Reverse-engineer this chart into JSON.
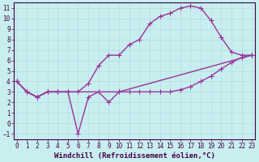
{
  "xlabel": "Windchill (Refroidissement éolien,°C)",
  "bg_color": "#c8eef0",
  "line_color": "#993399",
  "grid_color": "#b0dde0",
  "axis_color": "#440044",
  "tick_color": "#440044",
  "xlim": [
    -0.3,
    23.3
  ],
  "ylim": [
    -1.5,
    11.5
  ],
  "xticks": [
    0,
    1,
    2,
    3,
    4,
    5,
    6,
    7,
    8,
    9,
    10,
    11,
    12,
    13,
    14,
    15,
    16,
    17,
    18,
    19,
    20,
    21,
    22,
    23
  ],
  "yticks": [
    -1,
    0,
    1,
    2,
    3,
    4,
    5,
    6,
    7,
    8,
    9,
    10,
    11
  ],
  "line1_x": [
    0,
    1,
    2,
    3,
    4,
    5,
    6,
    7,
    8,
    9,
    10,
    11,
    12,
    13,
    14,
    15,
    16,
    17,
    18,
    19,
    20,
    21,
    22,
    23
  ],
  "line1_y": [
    4.0,
    3.0,
    2.5,
    3.0,
    3.0,
    3.0,
    -1.0,
    2.5,
    3.0,
    2.0,
    3.0,
    3.0,
    3.0,
    3.0,
    3.0,
    3.0,
    3.2,
    3.5,
    4.0,
    4.5,
    5.2,
    5.8,
    6.3,
    6.5
  ],
  "line2_x": [
    0,
    1,
    2,
    3,
    4,
    5,
    6,
    7,
    8,
    9,
    10,
    11,
    12,
    13,
    14,
    15,
    16,
    17,
    18,
    19,
    20,
    21,
    22,
    23
  ],
  "line2_y": [
    4.0,
    3.0,
    2.5,
    3.0,
    3.0,
    3.0,
    3.0,
    3.8,
    5.5,
    6.5,
    6.5,
    7.5,
    8.0,
    9.5,
    10.2,
    10.5,
    11.0,
    11.2,
    11.0,
    9.8,
    8.2,
    6.8,
    6.5,
    6.5
  ],
  "line3_x": [
    0,
    1,
    2,
    3,
    10,
    23
  ],
  "line3_y": [
    4.0,
    3.0,
    2.5,
    3.0,
    3.0,
    6.5
  ],
  "markersize": 3,
  "linewidth": 1.0,
  "fontsize_label": 6.5,
  "fontsize_tick": 5.5
}
